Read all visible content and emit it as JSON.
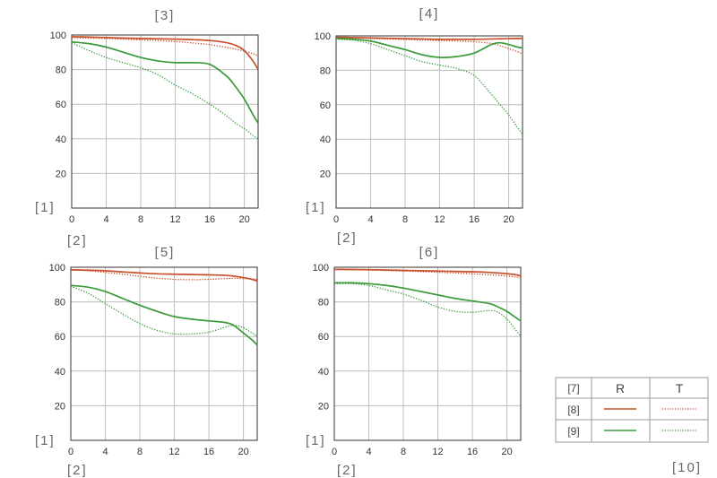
{
  "labels": {
    "y_axis": "[1]",
    "x_axis": "[2]",
    "corner": "[10]"
  },
  "legend": {
    "header": "[7]",
    "col_r": "R",
    "col_t": "T",
    "row_a": "[8]",
    "row_b": "[9]"
  },
  "colors": {
    "red": "#c8502a",
    "green": "#3a9a3a",
    "grid": "#bdbdbd",
    "frame": "#333333"
  },
  "chart_data": [
    {
      "type": "line",
      "title": "[3]",
      "xlim": [
        0,
        21.6
      ],
      "ylim": [
        0,
        100
      ],
      "xticks": [
        0,
        4,
        8,
        12,
        16,
        20
      ],
      "yticks": [
        20,
        40,
        60,
        80,
        100
      ],
      "x": [
        0,
        2,
        4,
        6,
        8,
        10,
        12,
        14,
        16,
        18,
        19,
        20,
        21,
        21.6
      ],
      "series": [
        {
          "color": "red",
          "style": "solid",
          "values": [
            99,
            98.8,
            98.5,
            98.2,
            98,
            97.8,
            97.6,
            97.3,
            96.8,
            95.5,
            94,
            91,
            85,
            80
          ]
        },
        {
          "color": "red",
          "style": "dotted",
          "values": [
            98.5,
            98.2,
            98,
            97.6,
            97.2,
            96.8,
            96.2,
            95.4,
            94.4,
            92.8,
            91.8,
            90.6,
            89.2,
            88
          ]
        },
        {
          "color": "green",
          "style": "solid",
          "values": [
            96,
            95,
            93,
            90,
            87,
            85,
            84,
            84,
            83,
            76,
            70,
            63,
            54,
            49
          ]
        },
        {
          "color": "green",
          "style": "dotted",
          "values": [
            95.5,
            91,
            87,
            84,
            81,
            77,
            71,
            66,
            60,
            53,
            49,
            46,
            42,
            40
          ]
        }
      ]
    },
    {
      "type": "line",
      "title": "[4]",
      "xlim": [
        0,
        21.6
      ],
      "ylim": [
        0,
        100
      ],
      "xticks": [
        0,
        4,
        8,
        12,
        16,
        20
      ],
      "yticks": [
        20,
        40,
        60,
        80,
        100
      ],
      "x": [
        0,
        2,
        4,
        6,
        8,
        10,
        12,
        14,
        16,
        18,
        19,
        20,
        21,
        21.6
      ],
      "series": [
        {
          "color": "red",
          "style": "solid",
          "values": [
            99.2,
            99,
            98.8,
            98.6,
            98.4,
            98.2,
            98,
            98,
            98,
            98.2,
            98.3,
            98.4,
            98.5,
            98.5
          ]
        },
        {
          "color": "red",
          "style": "dotted",
          "values": [
            99,
            98.8,
            98.5,
            98.2,
            97.9,
            97.6,
            97.3,
            97,
            96.6,
            95.6,
            94.3,
            92.6,
            90.8,
            89.5
          ]
        },
        {
          "color": "green",
          "style": "solid",
          "values": [
            98.5,
            98,
            97,
            94.5,
            92,
            89,
            87.5,
            88,
            90,
            95,
            96,
            95,
            93.5,
            93
          ]
        },
        {
          "color": "green",
          "style": "dotted",
          "values": [
            98,
            97.5,
            95.5,
            92,
            88.5,
            85,
            83,
            81,
            77,
            66,
            60,
            54,
            47,
            43
          ]
        }
      ]
    },
    {
      "type": "line",
      "title": "[5]",
      "xlim": [
        0,
        21.6
      ],
      "ylim": [
        0,
        100
      ],
      "xticks": [
        0,
        4,
        8,
        12,
        16,
        20
      ],
      "yticks": [
        20,
        40,
        60,
        80,
        100
      ],
      "x": [
        0,
        2,
        4,
        6,
        8,
        10,
        12,
        14,
        16,
        18,
        19,
        20,
        21,
        21.6
      ],
      "series": [
        {
          "color": "red",
          "style": "solid",
          "values": [
            98.5,
            98.3,
            98,
            97.3,
            96.7,
            96.2,
            96,
            95.8,
            95.6,
            95.3,
            94.8,
            94,
            93,
            92
          ]
        },
        {
          "color": "red",
          "style": "dotted",
          "values": [
            98.5,
            98,
            97,
            96,
            94.8,
            93.7,
            93,
            92.8,
            93,
            93.5,
            93.6,
            93.5,
            93.2,
            93
          ]
        },
        {
          "color": "green",
          "style": "solid",
          "values": [
            89.5,
            88.5,
            86,
            82,
            78,
            74.5,
            71.5,
            70,
            69,
            68,
            66,
            62,
            58,
            55
          ]
        },
        {
          "color": "green",
          "style": "dotted",
          "values": [
            89,
            85,
            79,
            73,
            67.5,
            63.5,
            61.5,
            61.5,
            62.5,
            65.5,
            66.5,
            65,
            62,
            60
          ]
        }
      ]
    },
    {
      "type": "line",
      "title": "[6]",
      "xlim": [
        0,
        21.6
      ],
      "ylim": [
        0,
        100
      ],
      "xticks": [
        0,
        4,
        8,
        12,
        16,
        20
      ],
      "yticks": [
        20,
        40,
        60,
        80,
        100
      ],
      "x": [
        0,
        2,
        4,
        6,
        8,
        10,
        12,
        14,
        16,
        18,
        19,
        20,
        21,
        21.6
      ],
      "series": [
        {
          "color": "red",
          "style": "solid",
          "values": [
            98.8,
            98.7,
            98.6,
            98.4,
            98.2,
            98,
            97.8,
            97.6,
            97.4,
            97,
            96.7,
            96.3,
            95.7,
            95
          ]
        },
        {
          "color": "red",
          "style": "dotted",
          "values": [
            98.8,
            98.6,
            98.4,
            98.1,
            97.8,
            97.5,
            97.1,
            96.7,
            96.2,
            95.6,
            95.3,
            94.9,
            94.4,
            94
          ]
        },
        {
          "color": "green",
          "style": "solid",
          "values": [
            91,
            91,
            90.5,
            89.5,
            88,
            86,
            84,
            82,
            80.5,
            79,
            77,
            74.5,
            71,
            69
          ]
        },
        {
          "color": "green",
          "style": "dotted",
          "values": [
            90.5,
            90.5,
            89.5,
            87,
            84.5,
            81,
            77,
            74.5,
            74,
            75,
            74,
            70,
            64,
            60
          ]
        }
      ]
    }
  ]
}
